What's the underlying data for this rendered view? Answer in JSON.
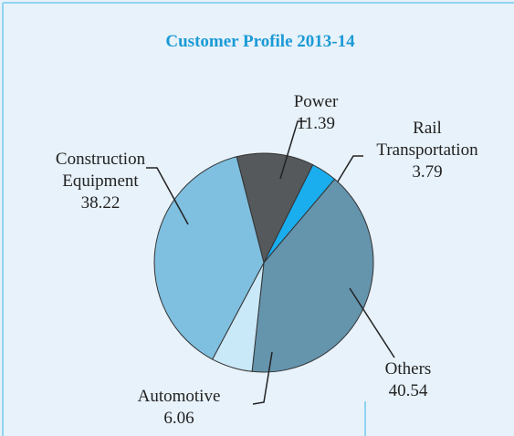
{
  "chart_data": {
    "type": "pie",
    "title": "Customer Profile 2013-14",
    "categories": [
      "Power",
      "Rail Transportation",
      "Others",
      "Automotive",
      "Construction Equipment"
    ],
    "values": [
      11.39,
      3.79,
      40.54,
      6.06,
      38.22
    ],
    "colors": [
      "#55595c",
      "#1aaeef",
      "#6594ad",
      "#c9e8f8",
      "#7fbfdf"
    ]
  }
}
